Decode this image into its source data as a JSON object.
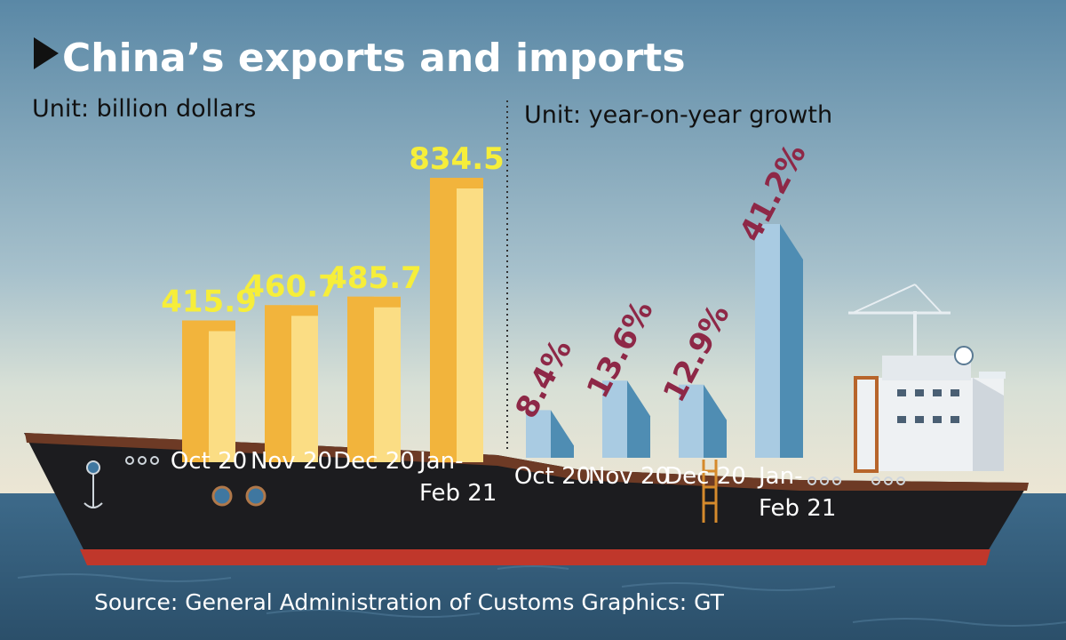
{
  "title": "China’s exports and imports",
  "left_unit": "Unit: billion dollars",
  "right_unit": "Unit: year-on-year growth",
  "source": "Source: General Administration of Customs   Graphics: GT",
  "colors": {
    "bar_light": "#fbdd84",
    "bar_dark": "#f2b43c",
    "growth_front": "#a9cbe2",
    "growth_side": "#4f8db3",
    "value_yellow": "#f6ee3a",
    "value_maroon": "#8e2847",
    "sky_top": "#5b89a7",
    "sea": "#35607f"
  },
  "chart_data": [
    {
      "type": "bar",
      "title": "China’s exports and imports",
      "unit": "Unit: billion dollars",
      "categories": [
        [
          "Oct 20"
        ],
        [
          "Nov 20"
        ],
        [
          "Dec 20"
        ],
        [
          "Jan-",
          "Feb 21"
        ]
      ],
      "value_labels": [
        "415.9",
        "460.7",
        "485.7",
        "834.5"
      ],
      "values": [
        415.9,
        460.7,
        485.7,
        834.5
      ]
    },
    {
      "type": "bar",
      "unit": "Unit: year-on-year growth",
      "categories": [
        [
          "Oct 20"
        ],
        [
          "Nov 20"
        ],
        [
          "Dec 20"
        ],
        [
          "Jan-",
          "Feb 21"
        ]
      ],
      "value_labels": [
        "8.4%",
        "13.6%",
        "12.9%",
        "41.2%"
      ],
      "values": [
        8.4,
        13.6,
        12.9,
        41.2
      ]
    }
  ]
}
